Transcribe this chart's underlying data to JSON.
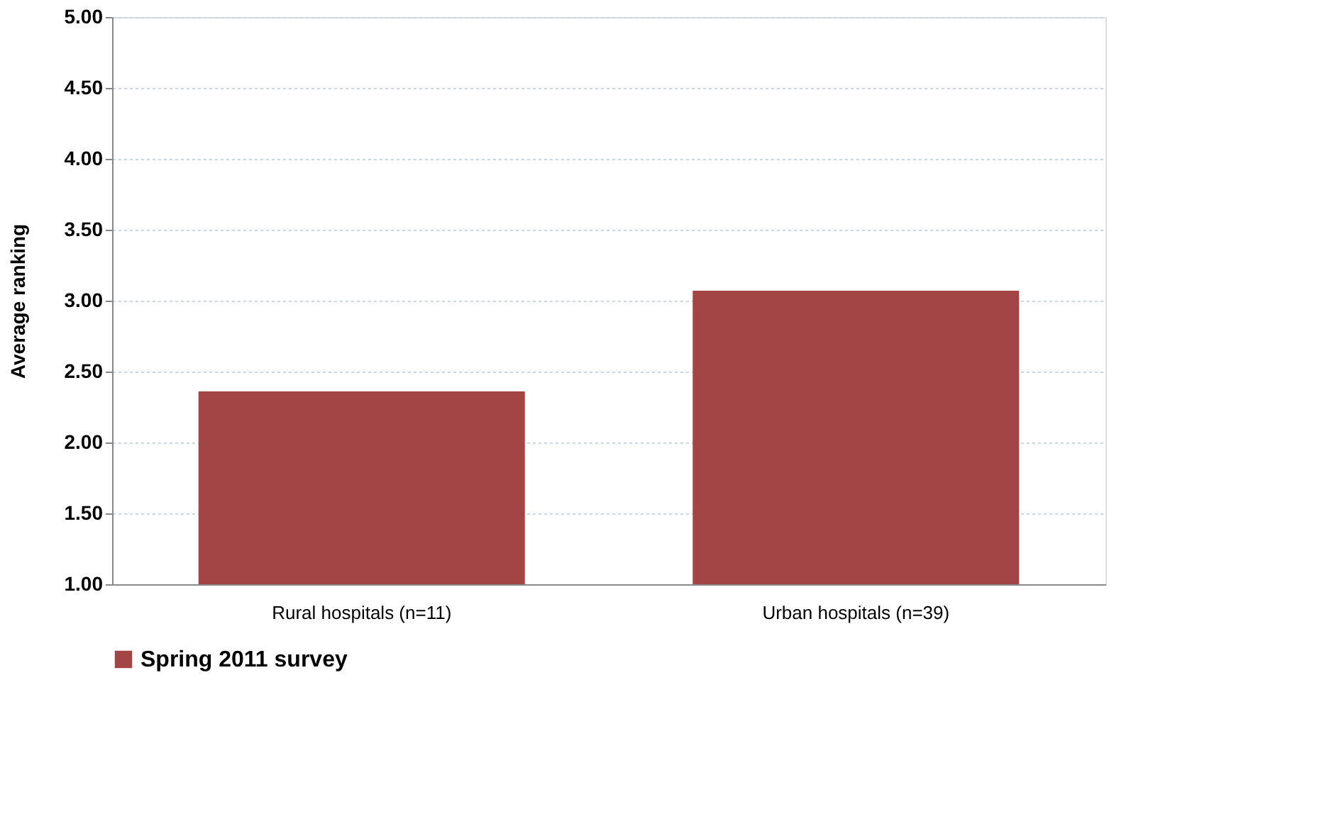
{
  "chart_data": {
    "type": "bar",
    "ylabel": "Average ranking",
    "categories": [
      "Rural hospitals  (n=11)",
      "Urban hospitals   (n=39)"
    ],
    "series": [
      {
        "name": "Spring 2011 survey",
        "color": "#a34545",
        "values": [
          2.36,
          3.07
        ]
      }
    ],
    "ylim": [
      1,
      5
    ],
    "yticks": [
      {
        "value": 1,
        "label": "1.00"
      },
      {
        "value": 1.5,
        "label": "1.50"
      },
      {
        "value": 2,
        "label": "2.00"
      },
      {
        "value": 2.5,
        "label": "2.50"
      },
      {
        "value": 3,
        "label": "3.00"
      },
      {
        "value": 3.5,
        "label": "3.50"
      },
      {
        "value": 4,
        "label": "4.00"
      },
      {
        "value": 4.5,
        "label": "4.50"
      },
      {
        "value": 5,
        "label": "5.00"
      }
    ],
    "grid": "y",
    "legend": "bottom"
  }
}
